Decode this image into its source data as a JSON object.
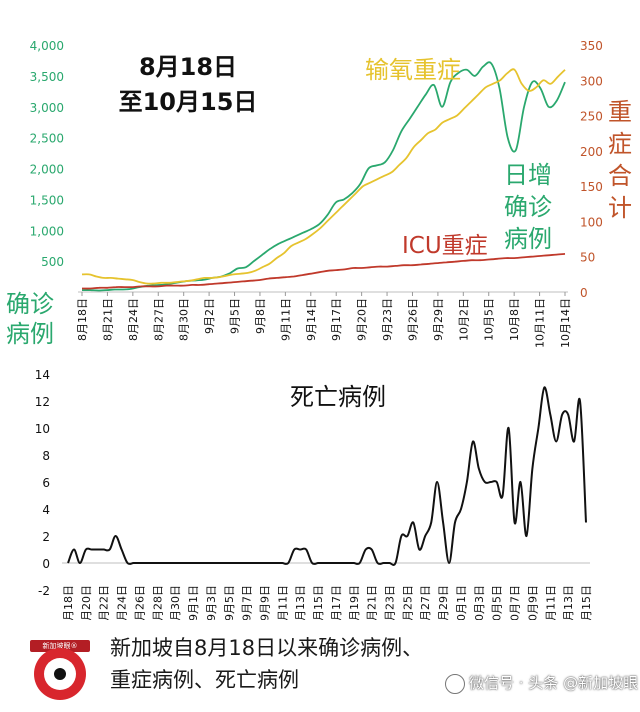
{
  "chart_data": [
    {
      "type": "line",
      "title_lines": [
        "8月18日",
        "至10月15日"
      ],
      "left_axis_label": "确诊\n病例",
      "right_axis_label": "重\n症\n合\n计",
      "left_ylim": [
        0,
        4000
      ],
      "left_ticks": [
        "0",
        "500",
        "1,000",
        "1,500",
        "2,000",
        "2,500",
        "3,000",
        "3,500",
        "4,000"
      ],
      "right_ylim": [
        0,
        350
      ],
      "right_ticks": [
        "0",
        "50",
        "100",
        "150",
        "200",
        "250",
        "300",
        "350"
      ],
      "x_tick_labels": [
        "8月18日",
        "8月21日",
        "8月24日",
        "8月27日",
        "8月30日",
        "9月2日",
        "9月5日",
        "9月8日",
        "9月11日",
        "9月14日",
        "9月17日",
        "9月20日",
        "9月23日",
        "9月26日",
        "9月29日",
        "10月2日",
        "10月5日",
        "10月8日",
        "10月11日",
        "10月14日"
      ],
      "grid": false,
      "legend": "inline labels",
      "series": [
        {
          "name": "日增\n确诊\n病例",
          "axis": "left",
          "color": "#2aa86e",
          "values": [
            30,
            30,
            25,
            30,
            40,
            40,
            50,
            80,
            100,
            110,
            120,
            140,
            160,
            180,
            190,
            200,
            230,
            250,
            300,
            380,
            400,
            500,
            600,
            700,
            780,
            840,
            900,
            960,
            1020,
            1100,
            1250,
            1450,
            1500,
            1600,
            1750,
            2000,
            2050,
            2100,
            2300,
            2600,
            2800,
            3000,
            3200,
            3350,
            3000,
            3400,
            3550,
            3600,
            3500,
            3650,
            3700,
            3300,
            2500,
            2300,
            3000,
            3400,
            3300,
            3000,
            3100,
            3400
          ]
        },
        {
          "name": "输氧重症",
          "axis": "right",
          "color": "#e6c32e",
          "values": [
            25,
            25,
            22,
            20,
            20,
            19,
            18,
            17,
            14,
            12,
            12,
            13,
            13,
            14,
            15,
            16,
            18,
            20,
            20,
            21,
            23,
            25,
            26,
            27,
            30,
            35,
            40,
            48,
            55,
            65,
            70,
            75,
            82,
            90,
            100,
            110,
            120,
            130,
            140,
            150,
            155,
            160,
            165,
            170,
            180,
            190,
            205,
            215,
            225,
            230,
            240,
            245,
            250,
            260,
            270,
            280,
            290,
            295,
            300,
            310,
            315,
            295,
            285,
            290,
            300,
            295,
            305,
            315
          ]
        },
        {
          "name": "ICU重症",
          "axis": "right",
          "color": "#c0392b",
          "values": [
            5,
            5,
            6,
            6,
            7,
            7,
            7,
            8,
            8,
            8,
            9,
            9,
            9,
            10,
            10,
            11,
            12,
            13,
            14,
            15,
            16,
            17,
            19,
            20,
            21,
            22,
            24,
            26,
            28,
            30,
            31,
            32,
            34,
            34,
            35,
            36,
            36,
            37,
            38,
            38,
            39,
            40,
            41,
            42,
            43,
            44,
            45,
            45,
            46,
            47,
            48,
            48,
            49,
            50,
            51,
            52,
            53,
            54
          ]
        }
      ]
    },
    {
      "type": "line",
      "title": "死亡病例",
      "ylim": [
        -2,
        14
      ],
      "y_ticks": [
        "-2",
        "0",
        "2",
        "4",
        "6",
        "8",
        "10",
        "12",
        "14"
      ],
      "x_tick_labels": [
        "8月18日",
        "8月20日",
        "8月22日",
        "8月24日",
        "8月26日",
        "8月28日",
        "8月30日",
        "9月1日",
        "9月3日",
        "9月5日",
        "9月7日",
        "9月9日",
        "9月11日",
        "9月13日",
        "9月15日",
        "9月17日",
        "9月19日",
        "9月21日",
        "9月23日",
        "9月25日",
        "9月27日",
        "9月29日",
        "10月1日",
        "10月3日",
        "10月5日",
        "10月7日",
        "10月9日",
        "10月11日",
        "10月13日",
        "10月15日"
      ],
      "grid": false,
      "series": [
        {
          "color": "#111111",
          "values": [
            0,
            1,
            0,
            1,
            1,
            1,
            1,
            1,
            2,
            1,
            0,
            0,
            0,
            0,
            0,
            0,
            0,
            0,
            0,
            0,
            0,
            0,
            0,
            0,
            0,
            0,
            0,
            0,
            0,
            0,
            0,
            0,
            0,
            0,
            0,
            0,
            0,
            0,
            1,
            1,
            1,
            0,
            0,
            0,
            0,
            0,
            0,
            0,
            0,
            0,
            1,
            1,
            0,
            0,
            0,
            0,
            2,
            2,
            3,
            1,
            2,
            3,
            6,
            3,
            0,
            3,
            4,
            6,
            9,
            7,
            6,
            6,
            6,
            5,
            10,
            3,
            6,
            2,
            7,
            10,
            13,
            11,
            9,
            11,
            11,
            9,
            12,
            3
          ]
        }
      ]
    }
  ],
  "caption": {
    "line1": "新加坡自8月18日以来确诊病例、",
    "line2": "重症病例、死亡病例"
  },
  "logo": {
    "tag": "新加坡眼®"
  },
  "watermark": "微信号 · 头条 @新加坡眼",
  "colors": {
    "green": "#2aa86e",
    "yellow": "#e6c32e",
    "red": "#c0392b",
    "orange_axis": "#c0542a",
    "black": "#111111"
  }
}
